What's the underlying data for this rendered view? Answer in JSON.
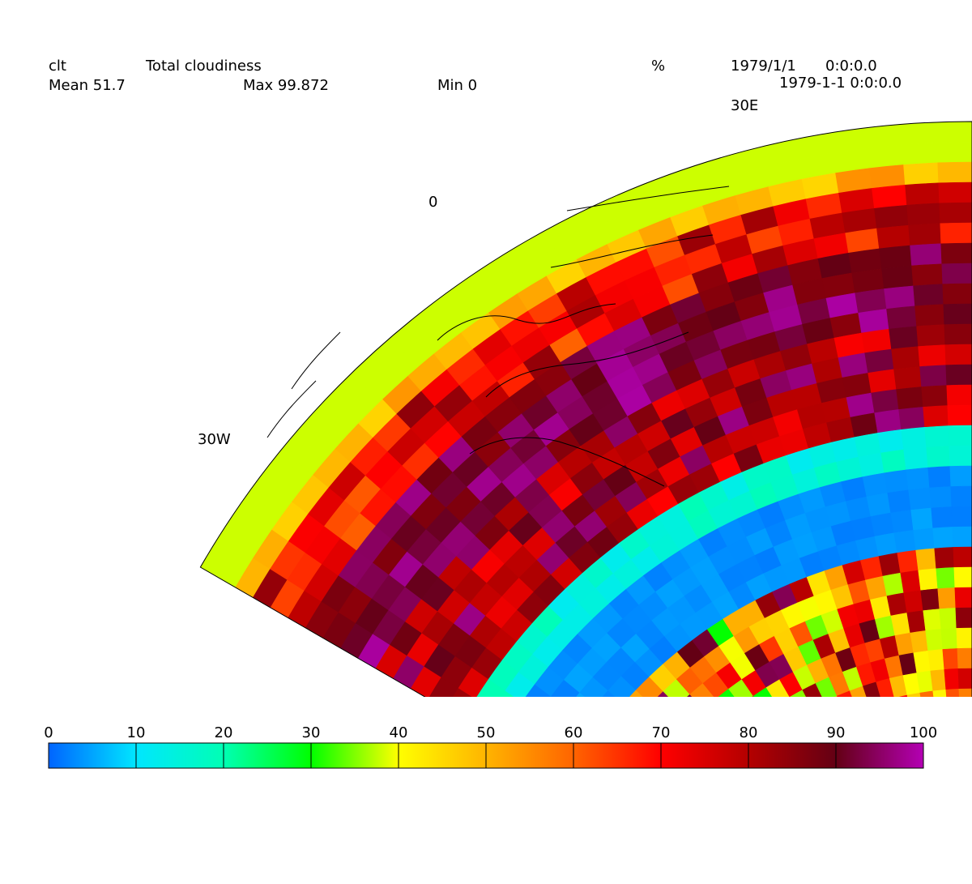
{
  "header": {
    "variable": "clt",
    "long_name": "Total cloudiness",
    "units": "%",
    "date": "1979/1/1",
    "time": "0:0:0.0",
    "mean": "Mean 51.7",
    "max": "Max 99.872",
    "min": "Min 0",
    "timestamp": "1979-1-1 0:0:0.0"
  },
  "map": {
    "projection": "polar stereographic sector",
    "lon_labels": [
      "30W",
      "0",
      "30E"
    ],
    "lon_range": [
      -30,
      30
    ],
    "coastlines": true
  },
  "colorbar": {
    "ticks": [
      "0",
      "10",
      "20",
      "30",
      "40",
      "50",
      "60",
      "70",
      "80",
      "90",
      "100"
    ],
    "min": 0,
    "max": 100,
    "colors": [
      "#0064ff",
      "#00e6ff",
      "#00ffb4",
      "#00ff00",
      "#ffff00",
      "#ffb400",
      "#ff6400",
      "#ff0000",
      "#b40000",
      "#640014",
      "#b400b4"
    ]
  }
}
